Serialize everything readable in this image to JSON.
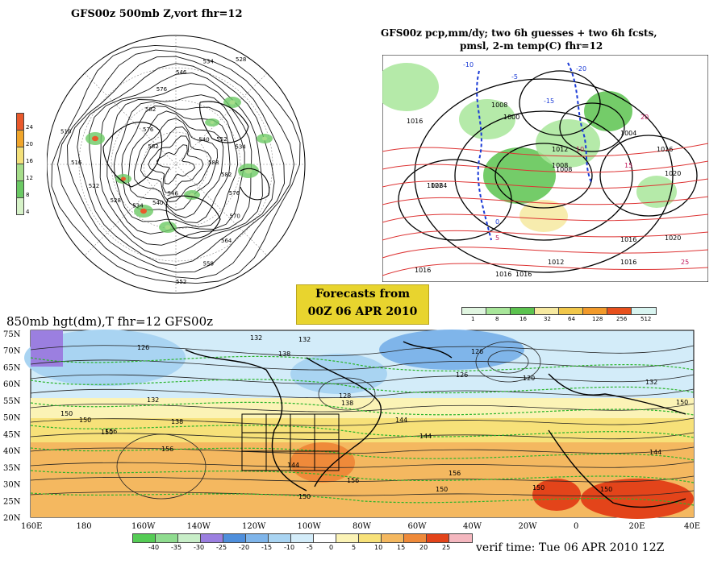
{
  "panel_500mb": {
    "title": "GFS00z   500mb Z,vort    fhr=12",
    "contour_labels": [
      "588",
      "582",
      "576",
      "570",
      "564",
      "558",
      "552",
      "546",
      "540",
      "534",
      "528",
      "522",
      "516",
      "510",
      "582",
      "576",
      "582",
      "576",
      "546",
      "534",
      "528",
      "540",
      "552",
      "534"
    ],
    "vort_scale": [
      "24",
      "20",
      "16",
      "12",
      "8",
      "4"
    ],
    "vort_colors": [
      "#e9592b",
      "#f0a52b",
      "#f3e07a",
      "#a6dd8a",
      "#6bc964",
      "#d6f2c8"
    ]
  },
  "panel_precip": {
    "title_line1": "GFS00z pcp,mm/dy; two 6h guesses + two 6h fcsts,",
    "title_line2": "pmsl, 2-m temp(C)  fhr=12",
    "isobar_labels": [
      "1016",
      "1024",
      "1016",
      "1028",
      "1008",
      "1004",
      "1008",
      "1012",
      "1016",
      "1020",
      "1008",
      "1000",
      "1020",
      "1016",
      "1012",
      "1016",
      "1016",
      "1016"
    ],
    "temp_labels": [
      "-10",
      "-5",
      "-15",
      "-20",
      "0",
      "5",
      "10",
      "15",
      "20",
      "25"
    ],
    "scale_values": [
      "1",
      "8",
      "16",
      "32",
      "64",
      "128",
      "256",
      "512"
    ],
    "scale_colors": [
      "#e0f5e0",
      "#a8e69a",
      "#5cc34f",
      "#f6e9a0",
      "#f1c74a",
      "#f29a2a",
      "#e8501c",
      "#d8f4f0"
    ]
  },
  "banner": {
    "line1": "Forecasts from",
    "line2": "00Z 06 APR 2010"
  },
  "panel_850mb": {
    "title": "850mb hgt(dm),T   fhr=12 GFS00z",
    "lat_ticks": [
      "75N",
      "70N",
      "65N",
      "60N",
      "55N",
      "50N",
      "45N",
      "40N",
      "35N",
      "30N",
      "25N",
      "20N"
    ],
    "lon_ticks": [
      "160E",
      "180",
      "160W",
      "140W",
      "120W",
      "100W",
      "80W",
      "60W",
      "40W",
      "20W",
      "0",
      "20E",
      "40E"
    ],
    "height_labels": [
      "126",
      "132",
      "138",
      "132",
      "126",
      "126",
      "120",
      "132",
      "150",
      "150",
      "138",
      "150",
      "132",
      "138",
      "144",
      "150",
      "156",
      "144",
      "156",
      "150",
      "150",
      "150",
      "144",
      "150",
      "156",
      "156",
      "144",
      "128"
    ],
    "temp_scale": [
      "-40",
      "-35",
      "-30",
      "-25",
      "-20",
      "-15",
      "-10",
      "-5",
      "0",
      "5",
      "10",
      "15",
      "20",
      "25"
    ],
    "temp_colors": [
      "#55cc55",
      "#8fdc8f",
      "#c8eec8",
      "#9b7fe0",
      "#4f8fdc",
      "#7fb5ea",
      "#a9d4f2",
      "#d3ecf9",
      "#ffffff",
      "#fbf3b6",
      "#f7e179",
      "#f4b860",
      "#ef8a3a",
      "#e3441a",
      "#f4b7bf"
    ]
  },
  "verif_time": "verif time: Tue 06 APR 2010 12Z"
}
